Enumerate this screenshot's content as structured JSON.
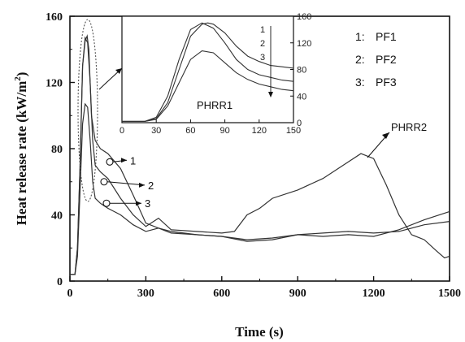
{
  "chart_data": [
    {
      "type": "line",
      "xlabel": "Time (s)",
      "ylabel_main": "Heat release rate (kW/m",
      "ylabel_sup": "2",
      "ylabel_end": ")",
      "xlim": [
        0,
        1500
      ],
      "ylim": [
        0,
        160
      ],
      "xticks": [
        0,
        300,
        600,
        900,
        1200,
        1500
      ],
      "yticks": [
        0,
        40,
        80,
        120,
        160
      ],
      "grid": false,
      "legend_position": "top-right (inside inset)",
      "legend": [
        {
          "number": "1:",
          "label": "PF1"
        },
        {
          "number": "2:",
          "label": "PF2"
        },
        {
          "number": "3:",
          "label": "PF3"
        }
      ],
      "annotations": {
        "phrr2": "PHRR2",
        "curve_labels": [
          "1",
          "2",
          "3"
        ]
      },
      "series": [
        {
          "marker": "1",
          "x": [
            0,
            20,
            30,
            40,
            50,
            60,
            68,
            75,
            85,
            100,
            120,
            150,
            200,
            250,
            300,
            350,
            400,
            500,
            600,
            700,
            800,
            900,
            1000,
            1100,
            1200,
            1300,
            1400,
            1500
          ],
          "y": [
            4,
            4,
            20,
            70,
            130,
            145,
            148,
            140,
            100,
            85,
            80,
            77,
            68,
            52,
            35,
            32,
            30,
            28,
            27,
            25,
            26,
            28,
            29,
            30,
            29,
            30,
            34,
            36
          ]
        },
        {
          "marker": "2",
          "x": [
            0,
            20,
            30,
            40,
            50,
            60,
            70,
            80,
            90,
            100,
            120,
            150,
            200,
            250,
            300,
            350,
            400,
            500,
            600,
            650,
            700,
            750,
            800,
            900,
            1000,
            1100,
            1150,
            1200,
            1250,
            1300,
            1350,
            1400,
            1450,
            1480,
            1500
          ],
          "y": [
            4,
            4,
            20,
            70,
            130,
            147,
            144,
            120,
            85,
            70,
            66,
            62,
            50,
            40,
            33,
            38,
            31,
            30,
            29,
            30,
            40,
            44,
            50,
            55,
            62,
            72,
            77,
            74,
            58,
            40,
            28,
            25,
            18,
            14,
            15
          ]
        },
        {
          "marker": "3",
          "x": [
            0,
            20,
            30,
            40,
            50,
            60,
            70,
            80,
            90,
            100,
            120,
            150,
            200,
            250,
            300,
            350,
            400,
            500,
            600,
            700,
            800,
            900,
            1000,
            1100,
            1200,
            1300,
            1400,
            1500
          ],
          "y": [
            4,
            4,
            15,
            55,
            95,
            107,
            105,
            85,
            60,
            50,
            47,
            44,
            40,
            34,
            30,
            32,
            29,
            28,
            27,
            24,
            25,
            28,
            27,
            28,
            27,
            31,
            37,
            42
          ]
        }
      ]
    },
    {
      "type": "line",
      "inset": true,
      "label": "PHRR1",
      "xlim": [
        0,
        150
      ],
      "ylim": [
        0,
        160
      ],
      "xticks": [
        0,
        30,
        60,
        90,
        120,
        150
      ],
      "yticks": [
        0,
        40,
        80,
        120,
        160
      ],
      "curve_labels": [
        "1",
        "2",
        "3"
      ],
      "series": [
        {
          "marker": "1",
          "x": [
            0,
            20,
            30,
            40,
            50,
            60,
            70,
            75,
            80,
            90,
            100,
            110,
            120,
            130,
            140,
            150
          ],
          "y": [
            2,
            2,
            6,
            30,
            80,
            130,
            148,
            150,
            148,
            135,
            115,
            100,
            92,
            86,
            84,
            82
          ]
        },
        {
          "marker": "2",
          "x": [
            0,
            20,
            30,
            40,
            50,
            60,
            70,
            80,
            90,
            100,
            110,
            120,
            130,
            140,
            150
          ],
          "y": [
            2,
            2,
            8,
            40,
            95,
            140,
            150,
            142,
            120,
            95,
            80,
            72,
            68,
            64,
            62
          ]
        },
        {
          "marker": "3",
          "x": [
            0,
            20,
            30,
            40,
            50,
            60,
            70,
            80,
            90,
            100,
            110,
            120,
            130,
            140,
            150
          ],
          "y": [
            2,
            2,
            5,
            25,
            60,
            95,
            108,
            105,
            90,
            75,
            65,
            58,
            54,
            50,
            48
          ]
        }
      ]
    }
  ]
}
